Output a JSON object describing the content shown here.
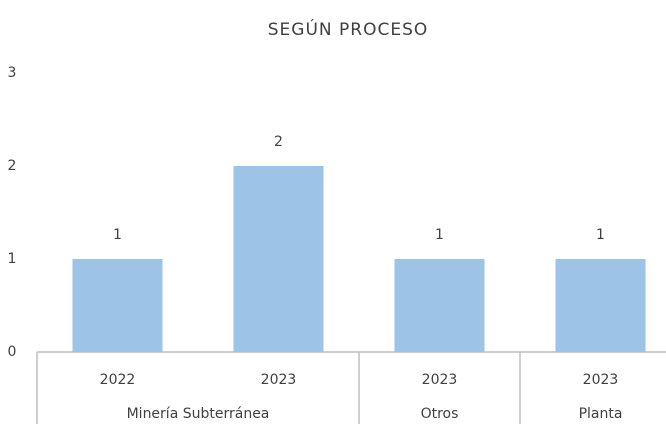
{
  "chart_data": {
    "type": "bar",
    "title": "SEGÚN PROCESO",
    "categories": [
      "2022",
      "2023",
      "2023",
      "2023"
    ],
    "category_groups": [
      "Minería Subterránea",
      "Minería Subterránea",
      "Otros",
      "Planta"
    ],
    "values": [
      1,
      2,
      1,
      1
    ],
    "color": "#9dc3e6",
    "ylim": [
      0,
      3
    ],
    "yticks": [
      0,
      1,
      2,
      3
    ],
    "grid": false
  }
}
